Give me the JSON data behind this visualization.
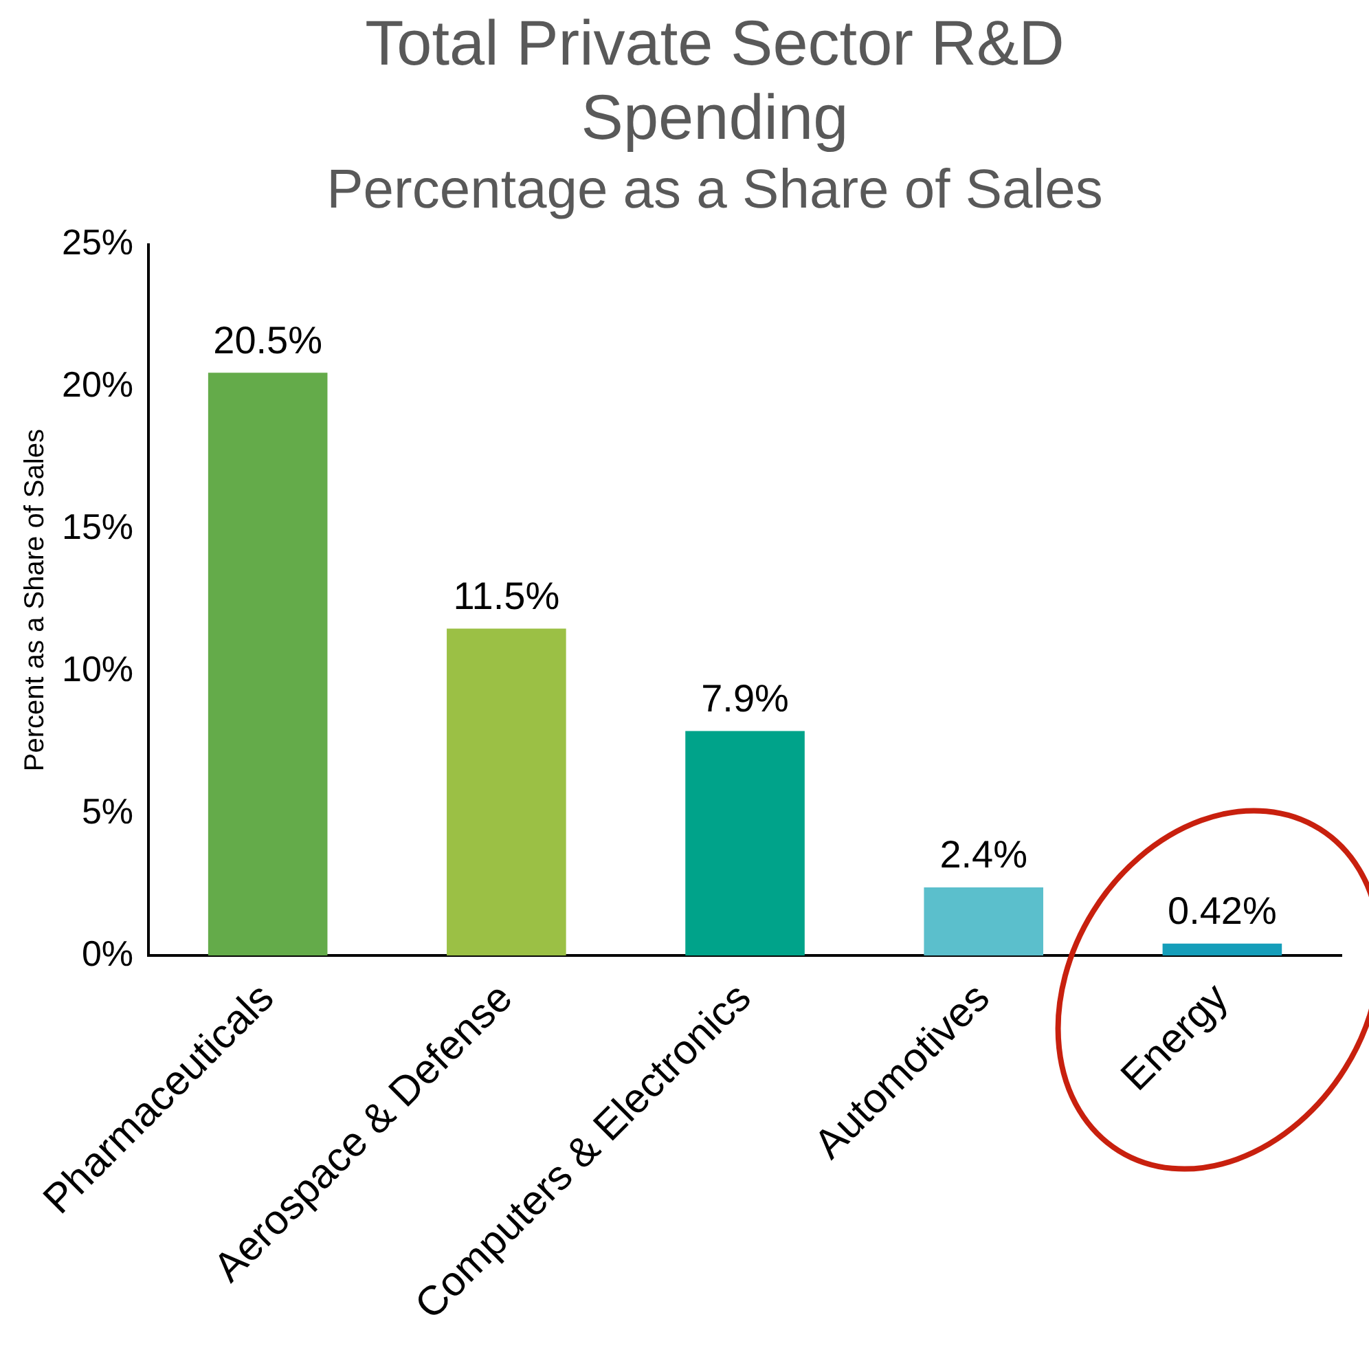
{
  "chart_data": {
    "type": "bar",
    "title": "Total Private Sector R&D Spending",
    "subtitle": "Percentage as a Share of Sales",
    "ylabel": "Percent as a Share of Sales",
    "categories": [
      "Pharmaceuticals",
      "Aerospace & Defense",
      "Computers & Electronics",
      "Automotives",
      "Energy"
    ],
    "values": [
      20.5,
      11.5,
      7.9,
      2.4,
      0.42
    ],
    "colors": [
      "#64ab4a",
      "#9bc045",
      "#00a38a",
      "#5bbfcc",
      "#159eba"
    ],
    "value_labels": [
      "20.5%",
      "11.5%",
      "7.9%",
      "2.4%",
      "0.42%"
    ],
    "ylim": [
      0,
      25
    ],
    "yticks": [
      {
        "value": 0,
        "label": "0%"
      },
      {
        "value": 5,
        "label": "5%"
      },
      {
        "value": 10,
        "label": "10%"
      },
      {
        "value": 15,
        "label": "15%"
      },
      {
        "value": 20,
        "label": "20%"
      },
      {
        "value": 25,
        "label": "25%"
      }
    ],
    "grid": false,
    "legend": false
  }
}
